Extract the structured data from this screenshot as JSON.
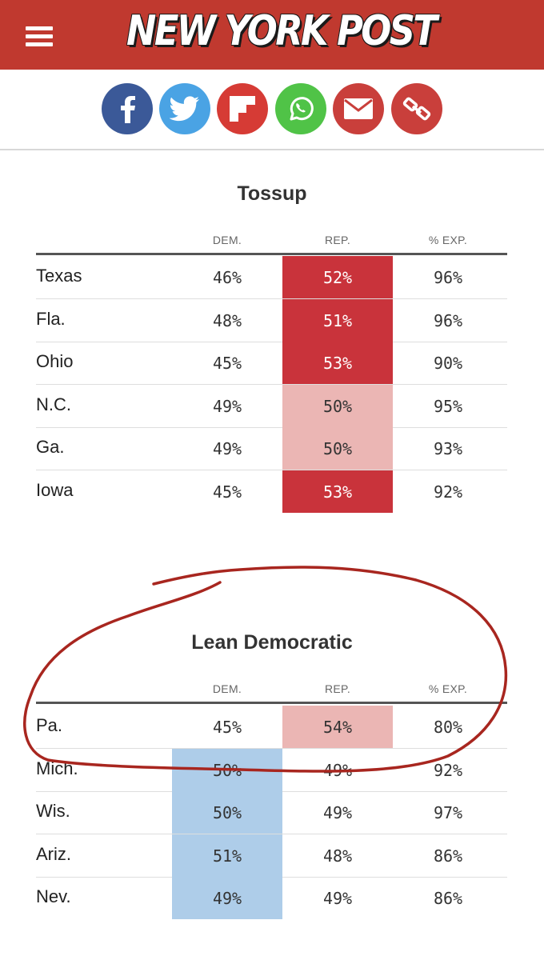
{
  "header": {
    "logo_text": "NEW YORK POST",
    "bg_color": "#c0392f"
  },
  "share": {
    "buttons": [
      {
        "name": "facebook",
        "icon": "facebook-icon",
        "color": "#3b5998"
      },
      {
        "name": "twitter",
        "icon": "twitter-icon",
        "color": "#4aa3e4"
      },
      {
        "name": "flipboard",
        "icon": "flipboard-icon",
        "color": "#d63b35"
      },
      {
        "name": "whatsapp",
        "icon": "whatsapp-icon",
        "color": "#50c347"
      },
      {
        "name": "email",
        "icon": "mail-icon",
        "color": "#c93f3b"
      },
      {
        "name": "copy-link",
        "icon": "link-icon",
        "color": "#c93f3b"
      }
    ]
  },
  "tossup": {
    "title": "Tossup",
    "columns": [
      "DEM.",
      "REP.",
      "% EXP."
    ],
    "rows": [
      {
        "state": "Texas",
        "dem": "46%",
        "rep": "52%",
        "exp": "96%"
      },
      {
        "state": "Fla.",
        "dem": "48%",
        "rep": "51%",
        "exp": "96%"
      },
      {
        "state": "Ohio",
        "dem": "45%",
        "rep": "53%",
        "exp": "90%"
      },
      {
        "state": "N.C.",
        "dem": "49%",
        "rep": "50%",
        "exp": "95%"
      },
      {
        "state": "Ga.",
        "dem": "49%",
        "rep": "50%",
        "exp": "93%"
      },
      {
        "state": "Iowa",
        "dem": "45%",
        "rep": "53%",
        "exp": "92%"
      }
    ]
  },
  "lean_dem": {
    "title": "Lean Democratic",
    "columns": [
      "DEM.",
      "REP.",
      "% EXP."
    ],
    "rows": [
      {
        "state": "Pa.",
        "dem": "45%",
        "rep": "54%",
        "exp": "80%"
      },
      {
        "state": "Mich.",
        "dem": "50%",
        "rep": "49%",
        "exp": "92%"
      },
      {
        "state": "Wis.",
        "dem": "50%",
        "rep": "49%",
        "exp": "97%"
      },
      {
        "state": "Ariz.",
        "dem": "51%",
        "rep": "48%",
        "exp": "86%"
      },
      {
        "state": "Nev.",
        "dem": "49%",
        "rep": "49%",
        "exp": "86%"
      }
    ]
  },
  "colors": {
    "rep_strong": "#c9333b",
    "rep_light": "#ebb6b4",
    "dem_light": "#aecde9",
    "annotation": "#a8261f"
  }
}
